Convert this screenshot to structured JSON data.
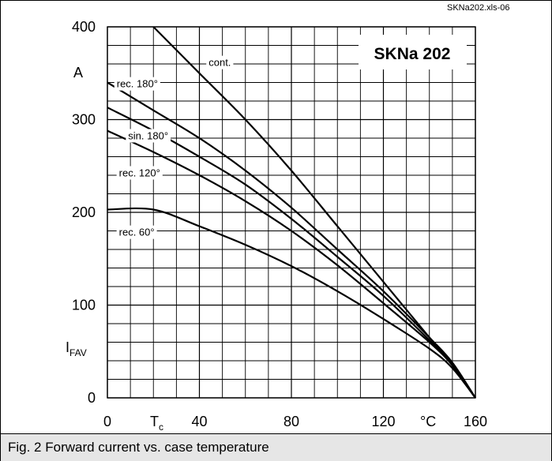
{
  "file_label": "SKNa202.xls-06",
  "caption": "Fig. 2 Forward current vs. case temperature",
  "colors": {
    "line": "#000000",
    "grid": "#000000",
    "caption_bg": "#e6e6e6"
  },
  "chart_data": {
    "type": "line",
    "title": "SKNa 202",
    "xlabel": "Tc",
    "xlabel_main": "T",
    "xlabel_sub": "c",
    "x_unit": "°C",
    "ylabel": "IFAV",
    "ylabel_main": "I",
    "ylabel_sub": "FAV",
    "y_unit": "A",
    "xlim": [
      0,
      160
    ],
    "ylim": [
      0,
      400
    ],
    "x_ticks": [
      0,
      40,
      80,
      120,
      160
    ],
    "x_tick_labels": [
      "0",
      "40",
      "80",
      "120",
      "160"
    ],
    "y_ticks": [
      0,
      100,
      200,
      300,
      400
    ],
    "y_tick_labels": [
      "0",
      "100",
      "200",
      "300",
      "400"
    ],
    "grid": true,
    "series": [
      {
        "name": "cont.",
        "x": [
          20,
          40,
          60,
          80,
          100,
          120,
          140,
          150,
          160
        ],
        "y": [
          400,
          350,
          300,
          245,
          185,
          125,
          65,
          35,
          0
        ]
      },
      {
        "name": "rec. 180°",
        "x": [
          0,
          20,
          40,
          60,
          80,
          100,
          120,
          140,
          150,
          160
        ],
        "y": [
          340,
          310,
          280,
          245,
          205,
          160,
          115,
          65,
          38,
          0
        ]
      },
      {
        "name": "sin. 180°",
        "x": [
          0,
          20,
          40,
          60,
          80,
          100,
          120,
          140,
          150,
          160
        ],
        "y": [
          313,
          288,
          260,
          230,
          193,
          152,
          110,
          62,
          36,
          0
        ]
      },
      {
        "name": "rec. 120°",
        "x": [
          0,
          20,
          40,
          60,
          80,
          100,
          120,
          140,
          150,
          160
        ],
        "y": [
          288,
          265,
          240,
          212,
          180,
          143,
          102,
          60,
          35,
          0
        ]
      },
      {
        "name": "rec. 60°",
        "x": [
          0,
          20,
          40,
          60,
          80,
          100,
          120,
          140,
          150,
          160
        ],
        "y": [
          203,
          203,
          185,
          165,
          142,
          115,
          85,
          53,
          32,
          0
        ]
      }
    ],
    "labels": [
      {
        "text": "cont.",
        "x": 43,
        "y": 362
      },
      {
        "text": "rec. 180°",
        "x": 3,
        "y": 339
      },
      {
        "text": "sin. 180°",
        "x": 8,
        "y": 283
      },
      {
        "text": "rec. 120°",
        "x": 4,
        "y": 243
      },
      {
        "text": "rec. 60°",
        "x": 4,
        "y": 179
      }
    ]
  }
}
